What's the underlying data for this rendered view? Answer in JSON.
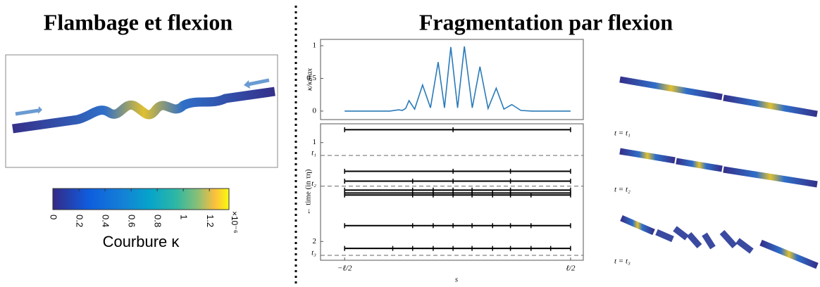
{
  "left": {
    "title": "Flambage et flexion",
    "colorbar": {
      "label": "Courbure κ",
      "lim": [
        0,
        1.35
      ],
      "ticks": [
        0,
        0.2,
        0.4,
        0.6,
        0.8,
        1,
        1.2
      ],
      "multiplier": "×10⁻⁶"
    }
  },
  "right": {
    "title": "Fragmentation par flexion",
    "snapshots": [
      "t = t₁",
      "t = t₂",
      "t = t₃"
    ]
  },
  "chart_data": [
    {
      "type": "line",
      "ylabel": "κ/κmax",
      "color": "#2a7ab8",
      "x": [
        -0.5,
        -0.3,
        -0.26,
        -0.245,
        -0.23,
        -0.215,
        -0.19,
        -0.155,
        -0.12,
        -0.086,
        -0.058,
        -0.03,
        0,
        0.03,
        0.065,
        0.099,
        0.135,
        0.171,
        0.205,
        0.24,
        0.28,
        0.33,
        0.5
      ],
      "values": [
        0,
        0,
        0.02,
        0.01,
        0.04,
        0.16,
        0.03,
        0.4,
        0.05,
        0.75,
        0.05,
        0.98,
        0.05,
        0.99,
        0.05,
        0.68,
        0.04,
        0.35,
        0.03,
        0.1,
        0.01,
        0,
        0
      ],
      "xlim": [
        -0.6066,
        0.5564
      ],
      "ylim": [
        -0.13,
        1.097
      ],
      "yticks": [
        0,
        0.5,
        1
      ]
    },
    {
      "type": "fragments",
      "ylabel": "← time (in τη)",
      "xlabel": "s",
      "xlim": [
        -0.6066,
        0.5564
      ],
      "xticks": [
        {
          "value": -0.5,
          "label": "−ℓ/2"
        },
        {
          "value": 0.5,
          "label": "ℓ/2"
        }
      ],
      "ylim": [
        0.81,
        2.19
      ],
      "yticks": [
        1,
        2
      ],
      "time_marks": [
        {
          "value": 1.13,
          "label": "t₁"
        },
        {
          "value": 1.44,
          "label": "t₂"
        },
        {
          "value": 2.14,
          "label": "t₃"
        }
      ],
      "fragments": [
        {
          "t": 0.87,
          "breaks": [
            -0.5,
            -0.02,
            0.5
          ]
        },
        {
          "t": 1.29,
          "breaks": [
            -0.5,
            -0.02,
            0.234,
            0.5
          ]
        },
        {
          "t": 1.39,
          "breaks": [
            -0.5,
            -0.199,
            -0.02,
            0.234,
            0.5
          ]
        },
        {
          "t": 1.48,
          "breaks": [
            -0.5,
            -0.199,
            -0.108,
            -0.02,
            0.064,
            0.234,
            0.5
          ]
        },
        {
          "t": 1.51,
          "breaks": [
            -0.5,
            -0.199,
            -0.108,
            -0.02,
            0.064,
            0.155,
            0.234,
            0.5
          ]
        },
        {
          "t": 1.53,
          "breaks": [
            -0.5,
            -0.199,
            -0.108,
            -0.02,
            0.064,
            0.155,
            0.234,
            0.325,
            0.5
          ]
        },
        {
          "t": 1.84,
          "breaks": [
            -0.5,
            -0.199,
            -0.108,
            -0.02,
            0.064,
            0.155,
            0.234,
            0.325,
            0.5
          ]
        },
        {
          "t": 2.07,
          "breaks": [
            -0.5,
            -0.287,
            -0.199,
            -0.108,
            -0.02,
            0.064,
            0.155,
            0.234,
            0.325,
            0.412,
            0.5
          ]
        }
      ]
    }
  ]
}
